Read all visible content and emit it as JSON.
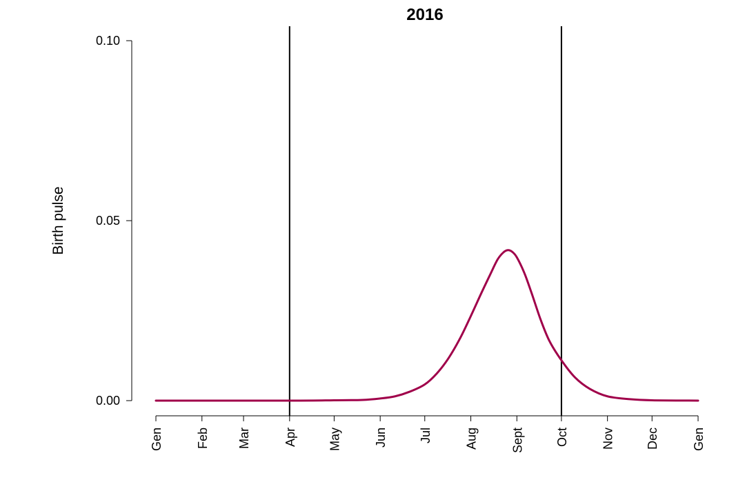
{
  "chart_data": {
    "type": "line",
    "title": "2016",
    "xlabel": "",
    "ylabel": "Birth pulse",
    "x_tick_labels": [
      "Gen",
      "Feb",
      "Mar",
      "Apr",
      "May",
      "Jun",
      "Jul",
      "Aug",
      "Sept",
      "Oct",
      "Nov",
      "Dec",
      "Gen"
    ],
    "x_tick_days": [
      1,
      32,
      60,
      91,
      121,
      152,
      182,
      213,
      244,
      274,
      305,
      335,
      366
    ],
    "y_ticks": [
      0.0,
      0.05,
      0.1
    ],
    "y_tick_labels": [
      "0.00",
      "0.05",
      "0.10"
    ],
    "ylim": [
      0.0,
      0.1
    ],
    "grid": false,
    "vertical_lines": [
      {
        "x_day": 91,
        "label": "Apr"
      },
      {
        "x_day": 274,
        "label": "Oct"
      }
    ],
    "series": [
      {
        "color": "#A0004A",
        "points": [
          {
            "day": 1,
            "y": 0.0
          },
          {
            "day": 91,
            "y": 0.0
          },
          {
            "day": 121,
            "y": 0.0001
          },
          {
            "day": 140,
            "y": 0.0002
          },
          {
            "day": 152,
            "y": 0.0006
          },
          {
            "day": 162,
            "y": 0.0012
          },
          {
            "day": 172,
            "y": 0.0025
          },
          {
            "day": 182,
            "y": 0.0045
          },
          {
            "day": 190,
            "y": 0.0075
          },
          {
            "day": 198,
            "y": 0.0118
          },
          {
            "day": 206,
            "y": 0.0175
          },
          {
            "day": 213,
            "y": 0.0235
          },
          {
            "day": 220,
            "y": 0.0298
          },
          {
            "day": 226,
            "y": 0.035
          },
          {
            "day": 231,
            "y": 0.0392
          },
          {
            "day": 235,
            "y": 0.0412
          },
          {
            "day": 238,
            "y": 0.0418
          },
          {
            "day": 241,
            "y": 0.0413
          },
          {
            "day": 244,
            "y": 0.0398
          },
          {
            "day": 249,
            "y": 0.0355
          },
          {
            "day": 254,
            "y": 0.0298
          },
          {
            "day": 260,
            "y": 0.0225
          },
          {
            "day": 266,
            "y": 0.0165
          },
          {
            "day": 274,
            "y": 0.0112
          },
          {
            "day": 283,
            "y": 0.0065
          },
          {
            "day": 293,
            "y": 0.0033
          },
          {
            "day": 305,
            "y": 0.0012
          },
          {
            "day": 320,
            "y": 0.0004
          },
          {
            "day": 335,
            "y": 0.0001
          },
          {
            "day": 366,
            "y": 0.0
          }
        ]
      }
    ]
  }
}
